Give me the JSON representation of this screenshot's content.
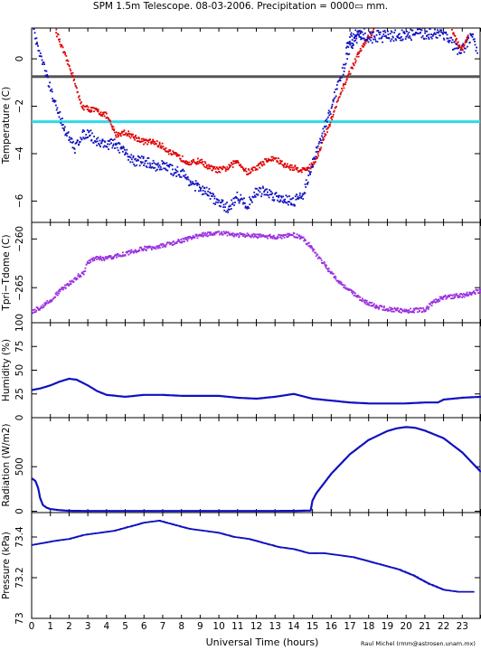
{
  "title": "SPM 1.5m Telescope. 08-03-2006. Precipitation = 0000",
  "title_unit": " mm.",
  "xlabel": "Universal Time (hours)",
  "credit": "Raul Michel (rmm@astrosen.unam.mx)",
  "colors": {
    "red": "#e00000",
    "blue": "#1010c0",
    "purple": "#9a30e0",
    "darkline": "#555555",
    "cyanline": "#30d8e8"
  },
  "chart_data": [
    {
      "type": "scatter",
      "ylabel": "Temperature (C)",
      "xlim": [
        0,
        24
      ],
      "ylim": [
        -6.9,
        1.3
      ],
      "yticks": [
        0,
        -2,
        -4,
        -6
      ],
      "ytick_labels": [
        "0",
        "−2",
        "−4",
        "−6"
      ],
      "hlines": [
        {
          "y": -0.75,
          "color": "darkline"
        },
        {
          "y": -2.65,
          "color": "cyanline"
        }
      ],
      "series": [
        {
          "color": "red",
          "noise": 0.12,
          "x": [
            1.3,
            1.6,
            2.0,
            2.3,
            2.5,
            2.7,
            3.0,
            3.5,
            4.0,
            4.5,
            5.0,
            5.5,
            6.0,
            6.5,
            7.0,
            7.5,
            8.0,
            8.5,
            9.0,
            9.5,
            10.0,
            10.5,
            11.0,
            11.5,
            12.0,
            12.5,
            13.0,
            13.5,
            14.0,
            14.5,
            15.0,
            15.3,
            15.6,
            16.0,
            16.4,
            16.8,
            17.2,
            17.6,
            18.0,
            18.3
          ],
          "y": [
            1.2,
            0.5,
            -0.3,
            -0.9,
            -1.6,
            -2.0,
            -2.1,
            -2.2,
            -2.4,
            -3.2,
            -3.1,
            -3.3,
            -3.5,
            -3.5,
            -3.7,
            -4.0,
            -4.2,
            -4.4,
            -4.3,
            -4.6,
            -4.7,
            -4.6,
            -4.3,
            -4.8,
            -4.6,
            -4.3,
            -4.2,
            -4.5,
            -4.6,
            -4.7,
            -4.5,
            -4.0,
            -3.4,
            -2.6,
            -1.7,
            -0.9,
            -0.2,
            0.4,
            0.9,
            1.3
          ]
        },
        {
          "color": "blue",
          "noise": 0.22,
          "x": [
            0.1,
            0.4,
            0.8,
            1.1,
            1.5,
            1.9,
            2.3,
            2.6,
            3.0,
            3.5,
            4.0,
            4.5,
            5.0,
            5.5,
            6.0,
            6.5,
            7.0,
            7.5,
            8.0,
            8.5,
            9.0,
            9.5,
            10.0,
            10.5,
            11.0,
            11.5,
            12.0,
            12.5,
            13.0,
            13.5,
            14.0,
            14.5,
            14.8,
            15.1,
            15.5,
            15.9,
            16.3,
            16.7,
            17.0,
            17.4,
            17.8
          ],
          "y": [
            1.2,
            0.3,
            -0.7,
            -1.6,
            -2.4,
            -3.2,
            -3.8,
            -3.3,
            -3.1,
            -3.5,
            -3.6,
            -3.6,
            -4.0,
            -4.3,
            -4.3,
            -4.5,
            -4.5,
            -4.7,
            -4.8,
            -5.2,
            -5.5,
            -5.7,
            -6.1,
            -6.3,
            -5.8,
            -6.2,
            -5.6,
            -5.6,
            -5.8,
            -5.9,
            -6.0,
            -5.7,
            -5.0,
            -4.2,
            -3.3,
            -2.3,
            -1.3,
            -0.3,
            0.5,
            0.9,
            1.3
          ]
        },
        {
          "color": "blue",
          "noise": 0.25,
          "x": [
            16.8,
            17.0,
            17.2,
            17.4,
            17.6,
            22.0,
            22.3,
            22.6,
            22.9,
            23.2,
            23.5,
            23.8
          ],
          "y": [
            0.6,
            1.0,
            0.8,
            1.2,
            0.9,
            1.1,
            0.8,
            0.5,
            0.2,
            0.6,
            1.0,
            0.4
          ]
        },
        {
          "color": "red",
          "noise": 0.1,
          "x": [
            22.4,
            22.6,
            22.8,
            23.0,
            23.3
          ],
          "y": [
            1.3,
            0.9,
            0.6,
            0.4,
            0.9
          ]
        }
      ]
    },
    {
      "type": "scatter",
      "ylabel": "Tpri−Tdome (C)",
      "xlim": [
        0,
        24
      ],
      "ylim": [
        -268.6,
        -258.3
      ],
      "yticks": [
        -260,
        -265
      ],
      "ytick_labels": [
        "−260",
        "−265"
      ],
      "series": [
        {
          "color": "purple",
          "noise": 0.22,
          "x": [
            0.0,
            0.5,
            1.0,
            1.5,
            2.0,
            2.5,
            2.8,
            3.0,
            3.5,
            4.0,
            5.0,
            6.0,
            7.0,
            8.0,
            9.0,
            10.0,
            11.0,
            12.0,
            13.0,
            14.0,
            14.5,
            15.0,
            15.5,
            16.0,
            16.5,
            17.0,
            17.5,
            18.0,
            18.5,
            19.0,
            19.5,
            20.0,
            20.5,
            21.0,
            21.5,
            22.0,
            23.0,
            24.0
          ],
          "y": [
            -267.5,
            -267.0,
            -266.3,
            -265.4,
            -264.6,
            -263.8,
            -263.5,
            -262.3,
            -262.0,
            -262.0,
            -261.5,
            -261.0,
            -260.7,
            -260.2,
            -259.6,
            -259.4,
            -259.6,
            -259.7,
            -259.8,
            -259.6,
            -259.9,
            -261.0,
            -262.3,
            -263.5,
            -264.5,
            -265.3,
            -266.1,
            -266.6,
            -267.0,
            -267.2,
            -267.3,
            -267.4,
            -267.3,
            -267.3,
            -266.4,
            -266.0,
            -265.8,
            -265.3
          ]
        }
      ]
    },
    {
      "type": "line",
      "ylabel": "Humidity (%)",
      "xlim": [
        0,
        24
      ],
      "ylim": [
        0,
        100
      ],
      "yticks": [
        0,
        25,
        50,
        75,
        100
      ],
      "ytick_labels": [
        "0",
        "25",
        "50",
        "75",
        "100"
      ],
      "series": [
        {
          "color": "blue",
          "x": [
            0,
            0.5,
            1.0,
            1.5,
            2.0,
            2.4,
            3.0,
            3.5,
            4.0,
            5.0,
            6.0,
            7.0,
            8.0,
            9.0,
            10.0,
            11.0,
            12.0,
            13.0,
            14.0,
            15.0,
            16.0,
            17.0,
            18.0,
            19.0,
            20.0,
            21.0,
            21.7,
            22.0,
            23.0,
            24.0
          ],
          "y": [
            29,
            31,
            34,
            38,
            41,
            40,
            34,
            28,
            24,
            22,
            24,
            24,
            23,
            23,
            23,
            21,
            20,
            22,
            25,
            20,
            18,
            16,
            15,
            15,
            15,
            16,
            16,
            19,
            21,
            22
          ]
        }
      ]
    },
    {
      "type": "line",
      "ylabel": "Radiation (W/m2)",
      "xlim": [
        0,
        24
      ],
      "ylim": [
        -15,
        1050
      ],
      "yticks": [
        0,
        500
      ],
      "ytick_labels": [
        "0",
        "500"
      ],
      "series": [
        {
          "color": "blue",
          "x": [
            0,
            0.2,
            0.35,
            0.45,
            0.6,
            0.8,
            1.0,
            1.5,
            2.0,
            3.0,
            5.0,
            8.0,
            11.0,
            14.0,
            14.9,
            15.0,
            15.2,
            16.0,
            17.0,
            18.0,
            19.0,
            19.5,
            20.0,
            20.5,
            21.0,
            22.0,
            23.0,
            24.0
          ],
          "y": [
            370,
            340,
            260,
            150,
            70,
            40,
            25,
            12,
            5,
            3,
            3,
            3,
            3,
            4,
            8,
            120,
            200,
            420,
            640,
            800,
            900,
            930,
            945,
            935,
            905,
            820,
            660,
            440
          ]
        }
      ]
    },
    {
      "type": "scatter",
      "ylabel": "Pressure (kPa)",
      "xlim": [
        0,
        24
      ],
      "ylim": [
        73.0,
        73.52
      ],
      "yticks": [
        73.0,
        73.2,
        73.4
      ],
      "ytick_labels": [
        "73",
        "73.2",
        "73.4"
      ],
      "series": [
        {
          "color": "blue",
          "noise": 0.0,
          "x": [
            0.0,
            0.6,
            1.2,
            2.0,
            2.8,
            3.6,
            4.4,
            5.2,
            6.0,
            6.8,
            7.6,
            8.4,
            9.2,
            10.0,
            10.8,
            11.6,
            12.4,
            13.2,
            14.0,
            14.8,
            15.6,
            16.4,
            17.2,
            18.0,
            18.8,
            19.6,
            20.4,
            21.2,
            22.0,
            22.8,
            23.6
          ],
          "y": [
            73.36,
            73.37,
            73.38,
            73.39,
            73.41,
            73.42,
            73.43,
            73.45,
            73.47,
            73.48,
            73.46,
            73.44,
            73.43,
            73.42,
            73.4,
            73.39,
            73.37,
            73.35,
            73.34,
            73.32,
            73.32,
            73.31,
            73.3,
            73.28,
            73.26,
            73.24,
            73.21,
            73.17,
            73.14,
            73.13,
            73.13
          ]
        }
      ]
    }
  ]
}
